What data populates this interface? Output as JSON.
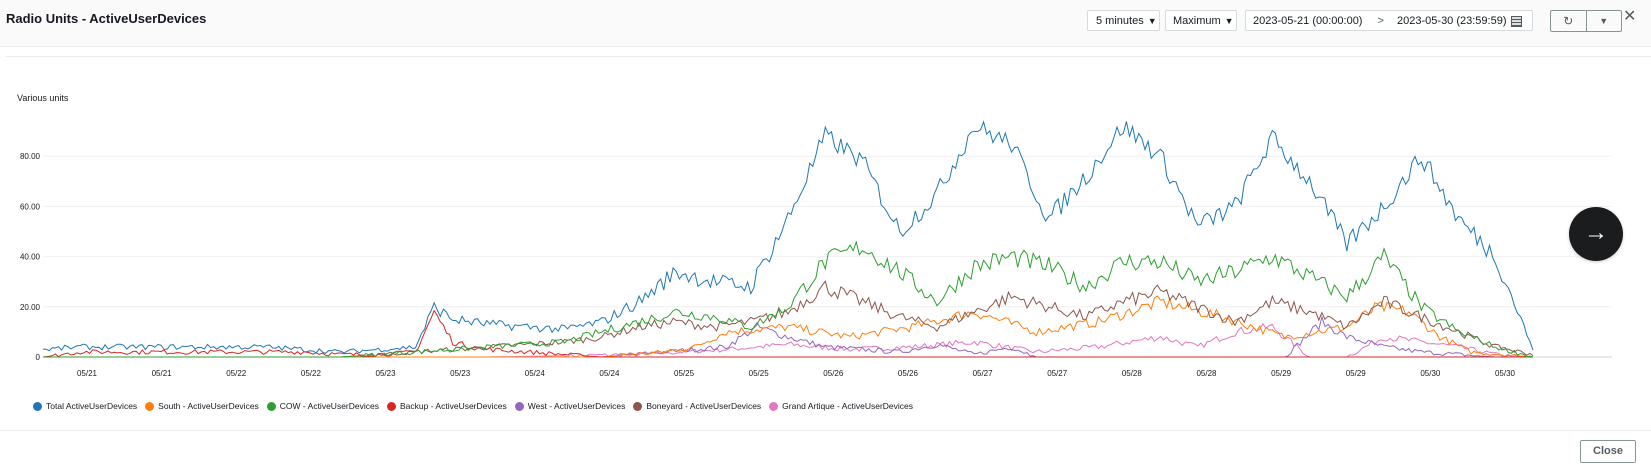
{
  "header": {
    "title": "Radio Units - ActiveUserDevices",
    "period": "5 minutes",
    "statistic": "Maximum",
    "range_start": "2023-05-21 (00:00:00)",
    "range_end": "2023-05-30 (23:59:59)",
    "range_separator_icon": "chevron-right-icon",
    "calendar_icon": "calendar-icon",
    "refresh_icon": "refresh-icon",
    "dropdown_icon": "caret-down-icon",
    "close_icon": "close-icon"
  },
  "next_button_icon": "arrow-right-icon",
  "footer": {
    "close_label": "Close"
  },
  "chart_data": {
    "type": "line",
    "title": "",
    "ylabel": "Various units",
    "xlabel": "",
    "ylim": [
      0,
      100
    ],
    "yticks": [
      "0",
      "20.00",
      "40.00",
      "60.00",
      "80.00"
    ],
    "ytick_values": [
      0,
      20,
      40,
      60,
      80
    ],
    "xticks": [
      "05/21",
      "05/21",
      "05/22",
      "05/22",
      "05/23",
      "05/23",
      "05/24",
      "05/24",
      "05/25",
      "05/25",
      "05/26",
      "05/26",
      "05/27",
      "05/27",
      "05/28",
      "05/28",
      "05/29",
      "05/29",
      "05/30",
      "05/30"
    ],
    "grid": true,
    "legend_position": "bottom-left",
    "x_domain_hours": [
      0,
      240
    ],
    "series": [
      {
        "name": "Total ActiveUserDevices",
        "color": "#1f77b4",
        "x": [
          0,
          6,
          12,
          18,
          24,
          30,
          36,
          42,
          48,
          54,
          60,
          63,
          66,
          69,
          72,
          78,
          84,
          90,
          96,
          102,
          108,
          114,
          120,
          126,
          132,
          138,
          144,
          150,
          156,
          162,
          168,
          174,
          180,
          186,
          192,
          198,
          204,
          210,
          216,
          222,
          228,
          234,
          240
        ],
        "values": [
          3,
          4,
          4,
          4,
          4,
          4,
          4,
          3,
          2,
          3,
          4,
          20,
          15,
          14,
          13,
          12,
          11,
          14,
          22,
          34,
          30,
          28,
          55,
          88,
          78,
          50,
          65,
          92,
          85,
          55,
          72,
          92,
          80,
          52,
          60,
          87,
          70,
          45,
          60,
          80,
          55,
          40,
          3
        ]
      },
      {
        "name": "South - ActiveUserDevices",
        "color": "#ff7f0e",
        "x": [
          0,
          24,
          48,
          72,
          90,
          100,
          105,
          110,
          120,
          130,
          140,
          150,
          160,
          170,
          180,
          190,
          200,
          210,
          215,
          220,
          225,
          230,
          240
        ],
        "values": [
          0,
          0,
          0,
          0,
          0,
          2,
          4,
          10,
          12,
          8,
          12,
          18,
          10,
          14,
          22,
          16,
          8,
          12,
          20,
          18,
          8,
          2,
          0
        ]
      },
      {
        "name": "COW - ActiveUserDevices",
        "color": "#2ca02c",
        "x": [
          0,
          48,
          60,
          72,
          84,
          96,
          102,
          108,
          114,
          120,
          126,
          132,
          138,
          144,
          150,
          156,
          162,
          168,
          174,
          180,
          186,
          192,
          198,
          204,
          210,
          216,
          222,
          228,
          234,
          240
        ],
        "values": [
          0,
          0,
          2,
          4,
          6,
          14,
          18,
          16,
          12,
          20,
          38,
          44,
          34,
          22,
          36,
          40,
          36,
          28,
          38,
          38,
          30,
          34,
          40,
          32,
          24,
          40,
          20,
          10,
          4,
          0
        ]
      },
      {
        "name": "Backup - ActiveUserDevices",
        "color": "#d62728",
        "x": [
          0,
          6,
          12,
          18,
          24,
          30,
          36,
          42,
          48,
          54,
          60,
          63,
          66,
          69,
          72,
          78,
          84,
          90,
          240
        ],
        "values": [
          0,
          2,
          2,
          2,
          2,
          2,
          2,
          2,
          1,
          1,
          2,
          18,
          6,
          4,
          3,
          2,
          1,
          0,
          0
        ]
      },
      {
        "name": "West - ActiveUserDevices",
        "color": "#9467bd",
        "x": [
          0,
          90,
          100,
          110,
          115,
          120,
          126,
          132,
          138,
          144,
          150,
          156,
          160,
          170,
          180,
          186,
          190,
          200,
          206,
          210,
          216,
          222,
          228,
          234,
          240
        ],
        "values": [
          0,
          0,
          2,
          4,
          12,
          8,
          4,
          3,
          2,
          5,
          1,
          4,
          0,
          0,
          0,
          0,
          0,
          0,
          14,
          8,
          4,
          2,
          1,
          0,
          0
        ]
      },
      {
        "name": "Boneyard - ActiveUserDevices",
        "color": "#8c564b",
        "x": [
          0,
          24,
          48,
          60,
          72,
          84,
          90,
          96,
          102,
          108,
          114,
          120,
          126,
          132,
          138,
          144,
          150,
          156,
          162,
          168,
          174,
          180,
          186,
          192,
          198,
          204,
          210,
          216,
          222,
          228,
          234,
          240
        ],
        "values": [
          0,
          0,
          0,
          2,
          4,
          6,
          8,
          12,
          14,
          12,
          14,
          18,
          28,
          22,
          16,
          12,
          18,
          24,
          20,
          16,
          22,
          26,
          20,
          14,
          22,
          18,
          12,
          22,
          16,
          10,
          4,
          1
        ]
      },
      {
        "name": "Grand Artique - ActiveUserDevices",
        "color": "#e377c2",
        "x": [
          0,
          72,
          96,
          110,
          120,
          130,
          140,
          150,
          160,
          170,
          180,
          186,
          192,
          198,
          204,
          210,
          216,
          222,
          228,
          234,
          240
        ],
        "values": [
          0,
          0,
          1,
          3,
          5,
          3,
          4,
          6,
          2,
          4,
          8,
          4,
          10,
          12,
          0,
          0,
          8,
          6,
          4,
          1,
          0
        ]
      }
    ]
  }
}
